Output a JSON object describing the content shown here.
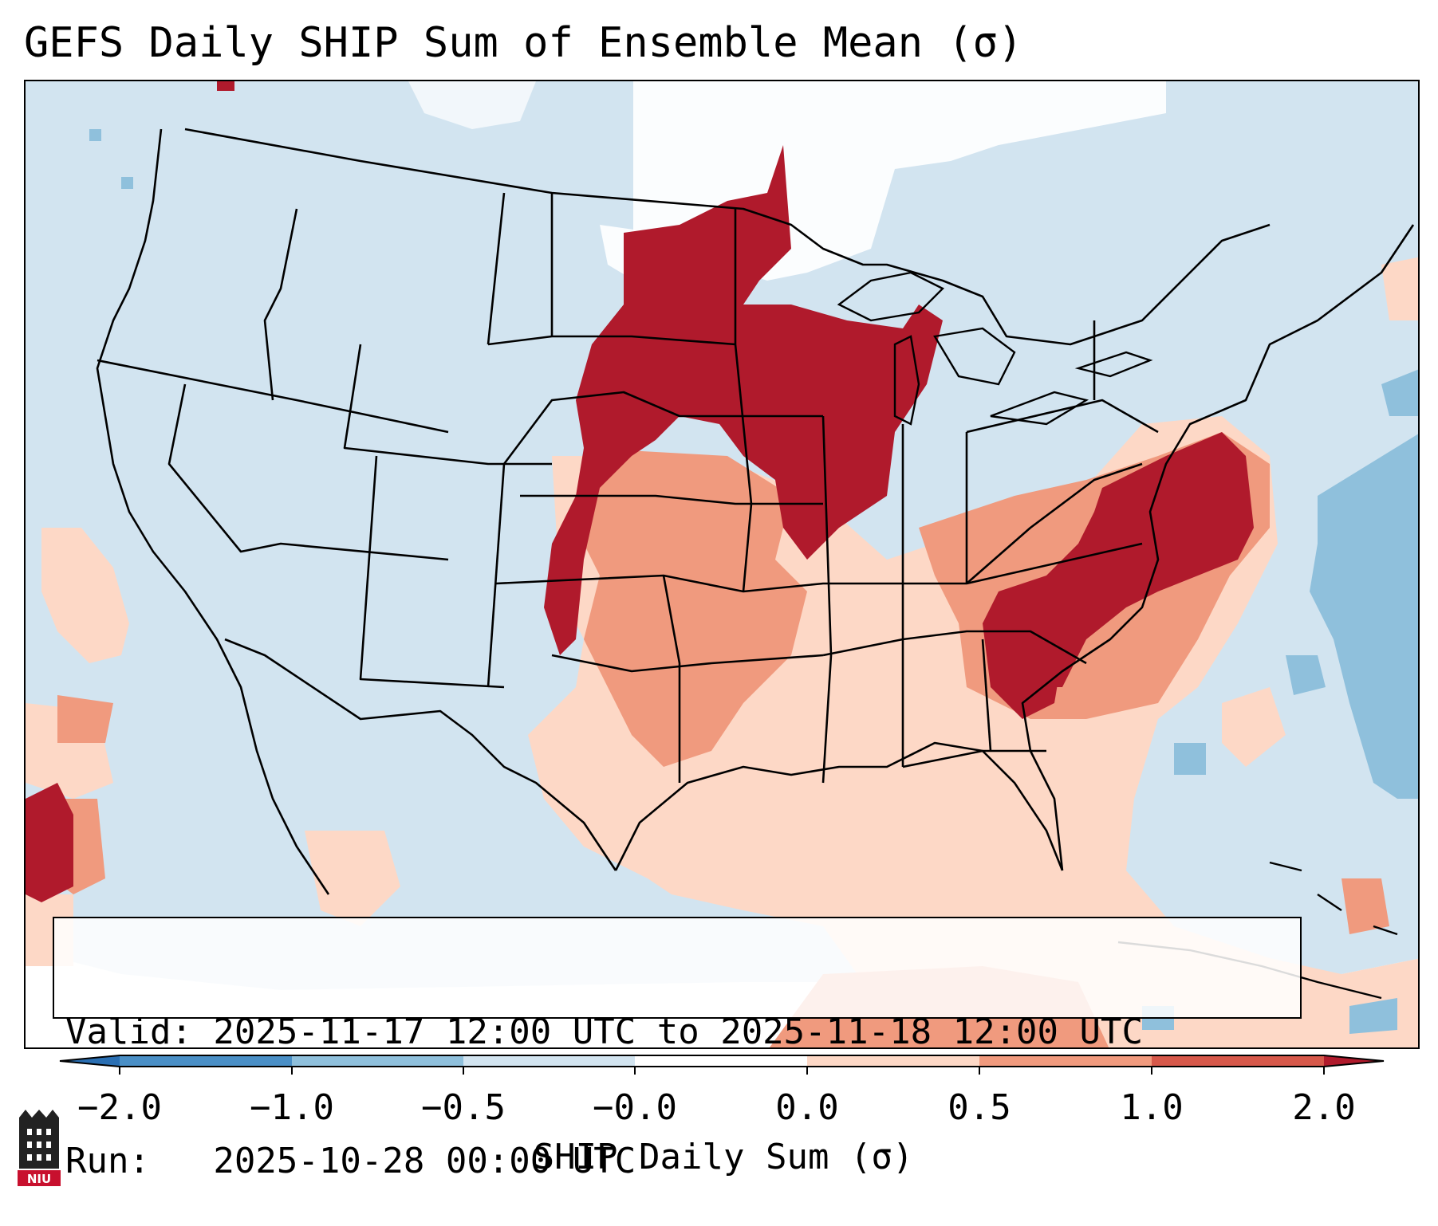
{
  "title": "GEFS Daily SHIP Sum of Ensemble Mean (σ)",
  "info": {
    "valid": "Valid: 2025-11-17 12:00 UTC to 2025-11-18 12:00 UTC",
    "run": "Run:   2025-10-28 00:00 UTC"
  },
  "colorbar": {
    "label": "SHIP Daily Sum (σ)",
    "tick_labels": [
      "−2.0",
      "−1.0",
      "−0.5",
      "−0.0",
      "0.0",
      "0.5",
      "1.0",
      "2.0"
    ],
    "bin_colors": [
      "#4a8fc6",
      "#8fc0dc",
      "#d2e4f0",
      "#ffffff",
      "#fdd8c6",
      "#f09a7e",
      "#d6584a",
      "#b01a2c"
    ],
    "extend": "both"
  },
  "map": {
    "region": "Contiguous United States",
    "projection": "Lambert conformal",
    "borders": "states and countries"
  },
  "logo": {
    "text": "NIU"
  }
}
